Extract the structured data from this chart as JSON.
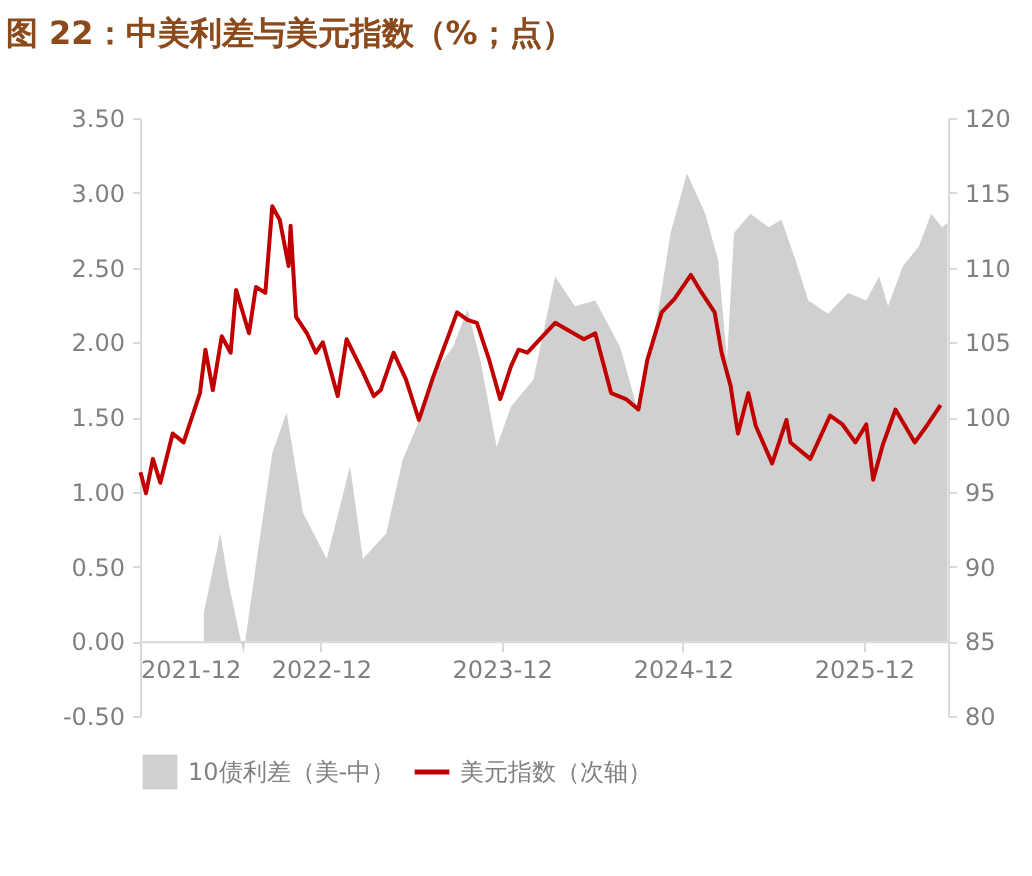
{
  "chart_data": {
    "type": "line",
    "title": "图 22：中美利差与美元指数（%；点）",
    "xlim": [
      "2021-12-01",
      "2026-05-20"
    ],
    "xticks": [
      "2021-12",
      "2022-12",
      "2023-12",
      "2024-12",
      "2025-12"
    ],
    "ylim": [
      -0.5,
      3.5
    ],
    "yticks": [
      {
        "value": -0.5,
        "label": "-0.50"
      },
      {
        "value": 0,
        "label": "0.00"
      },
      {
        "value": 0.5,
        "label": "0.50"
      },
      {
        "value": 1,
        "label": "1.00"
      },
      {
        "value": 1.5,
        "label": "1.50"
      },
      {
        "value": 2,
        "label": "2.00"
      },
      {
        "value": 2.5,
        "label": "2.50"
      },
      {
        "value": 3,
        "label": "3.00"
      },
      {
        "value": 3.5,
        "label": "3.50"
      }
    ],
    "y2lim": [
      80,
      120
    ],
    "y2ticks": [
      80,
      85,
      90,
      95,
      100,
      105,
      110,
      115,
      120
    ],
    "grid": false,
    "legend": "bottom",
    "series": [
      {
        "name": "10债利差（美-中）",
        "type": "area",
        "axis": "y",
        "color": "#d0d0d0",
        "x": [
          "2022-04-09",
          "2022-05-12",
          "2022-05-30",
          "2022-06-28",
          "2022-07-23",
          "2022-08-25",
          "2022-09-23",
          "2022-10-26",
          "2022-12-13",
          "2023-01-29",
          "2023-02-24",
          "2023-04-12",
          "2023-05-15",
          "2023-06-13",
          "2023-07-16",
          "2023-08-25",
          "2023-09-23",
          "2023-10-19",
          "2023-11-21",
          "2023-12-20",
          "2024-02-03",
          "2024-03-18",
          "2024-04-27",
          "2024-06-07",
          "2024-07-27",
          "2024-09-02",
          "2024-10-05",
          "2024-11-06",
          "2024-12-09",
          "2025-01-15",
          "2025-02-10",
          "2025-02-28",
          "2025-03-14",
          "2025-04-16",
          "2025-05-23",
          "2025-06-18",
          "2025-07-16",
          "2025-08-11",
          "2025-09-20",
          "2025-10-30",
          "2025-12-06",
          "2026-01-01",
          "2026-01-19",
          "2026-02-18",
          "2026-03-22",
          "2026-04-16",
          "2026-05-08",
          "2026-05-19"
        ],
        "values": [
          0.19,
          0.72,
          0.37,
          -0.08,
          0.51,
          1.26,
          1.53,
          0.86,
          0.55,
          1.17,
          0.55,
          0.72,
          1.21,
          1.44,
          1.79,
          1.97,
          2.22,
          1.88,
          1.3,
          1.57,
          1.75,
          2.44,
          2.24,
          2.28,
          1.97,
          1.53,
          2.06,
          2.73,
          3.13,
          2.86,
          2.55,
          1.88,
          2.73,
          2.86,
          2.77,
          2.82,
          2.55,
          2.28,
          2.19,
          2.33,
          2.28,
          2.44,
          2.24,
          2.51,
          2.64,
          2.86,
          2.77,
          2.8
        ]
      },
      {
        "name": "美元指数（次轴）",
        "axis": "y2",
        "color": "#c00000",
        "x": [
          "2021-12-02",
          "2021-12-13",
          "2021-12-27",
          "2022-01-11",
          "2022-02-05",
          "2022-02-27",
          "2022-04-01",
          "2022-04-12",
          "2022-04-27",
          "2022-05-15",
          "2022-06-02",
          "2022-06-13",
          "2022-07-09",
          "2022-07-23",
          "2022-08-11",
          "2022-08-25",
          "2022-09-09",
          "2022-09-27",
          "2022-10-01",
          "2022-10-12",
          "2022-11-03",
          "2022-11-21",
          "2022-12-05",
          "2023-01-04",
          "2023-01-22",
          "2023-02-24",
          "2023-03-18",
          "2023-04-01",
          "2023-04-27",
          "2023-05-22",
          "2023-06-17",
          "2023-07-16",
          "2023-09-02",
          "2023-09-23",
          "2023-10-12",
          "2023-11-06",
          "2023-11-28",
          "2023-12-20",
          "2024-01-04",
          "2024-01-22",
          "2024-03-18",
          "2024-05-15",
          "2024-06-07",
          "2024-07-09",
          "2024-08-08",
          "2024-09-02",
          "2024-09-20",
          "2024-10-19",
          "2024-11-14",
          "2024-12-17",
          "2025-01-08",
          "2025-02-03",
          "2025-02-17",
          "2025-03-07",
          "2025-03-22",
          "2025-04-12",
          "2025-04-27",
          "2025-05-30",
          "2025-06-28",
          "2025-07-06",
          "2025-08-15",
          "2025-09-24",
          "2025-10-19",
          "2025-11-14",
          "2025-12-06",
          "2025-12-20",
          "2026-01-08",
          "2026-02-03",
          "2026-03-14",
          "2026-04-09",
          "2026-05-05"
        ],
        "values": [
          96.3,
          94.9,
          97.2,
          95.6,
          98.9,
          98.3,
          101.6,
          104.5,
          101.8,
          105.4,
          104.3,
          108.5,
          105.6,
          108.7,
          108.3,
          114.1,
          113.2,
          110.1,
          112.8,
          106.7,
          105.6,
          104.3,
          105.0,
          101.4,
          105.2,
          103.0,
          101.4,
          101.8,
          104.3,
          102.5,
          99.8,
          102.7,
          107.0,
          106.5,
          106.3,
          103.8,
          101.2,
          103.4,
          104.5,
          104.3,
          106.3,
          105.2,
          105.6,
          101.6,
          101.2,
          100.5,
          103.8,
          107.0,
          107.9,
          109.5,
          108.3,
          107.0,
          104.3,
          102.1,
          98.9,
          101.6,
          99.4,
          96.9,
          99.8,
          98.3,
          97.2,
          100.1,
          99.5,
          98.3,
          99.5,
          95.8,
          98.1,
          100.5,
          98.3,
          99.5,
          100.8
        ]
      }
    ]
  }
}
